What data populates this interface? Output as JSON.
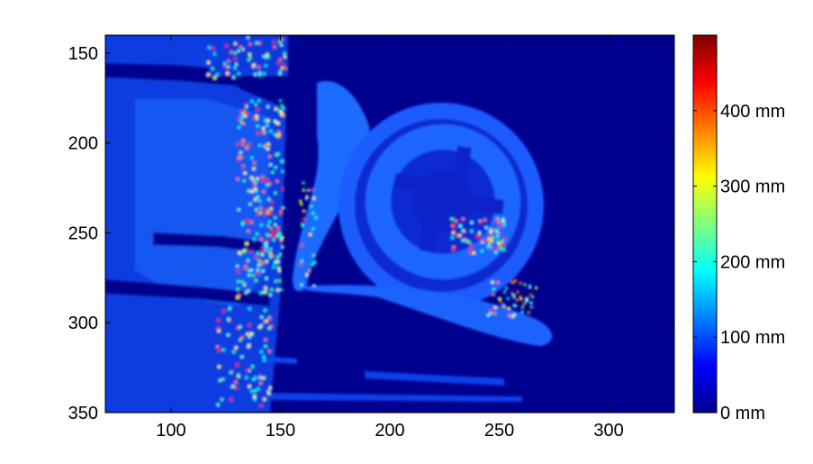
{
  "chart_data": {
    "type": "heatmap",
    "title": "",
    "xlabel": "",
    "ylabel": "",
    "xlim": [
      70,
      330
    ],
    "ylim": [
      350,
      140
    ],
    "x_ticks": [
      {
        "value": 100,
        "label": "100"
      },
      {
        "value": 150,
        "label": "150"
      },
      {
        "value": 200,
        "label": "200"
      },
      {
        "value": 250,
        "label": "250"
      },
      {
        "value": 300,
        "label": "300"
      }
    ],
    "y_ticks": [
      {
        "value": 150,
        "label": "150"
      },
      {
        "value": 200,
        "label": "200"
      },
      {
        "value": 250,
        "label": "250"
      },
      {
        "value": 300,
        "label": "300"
      },
      {
        "value": 350,
        "label": "350"
      }
    ],
    "colorbar": {
      "colormap": "jet",
      "range": [
        0,
        500
      ],
      "unit": "mm",
      "ticks": [
        {
          "value": 0,
          "label": "0   mm"
        },
        {
          "value": 100,
          "label": "100 mm"
        },
        {
          "value": 200,
          "label": "200 mm"
        },
        {
          "value": 300,
          "label": "300 mm"
        },
        {
          "value": 400,
          "label": "400 mm"
        }
      ]
    },
    "background_value": 0,
    "colors": {
      "background": "#00008f",
      "low": "#0020d0",
      "mid": "#0a60ff",
      "high": "#80ffff"
    }
  }
}
